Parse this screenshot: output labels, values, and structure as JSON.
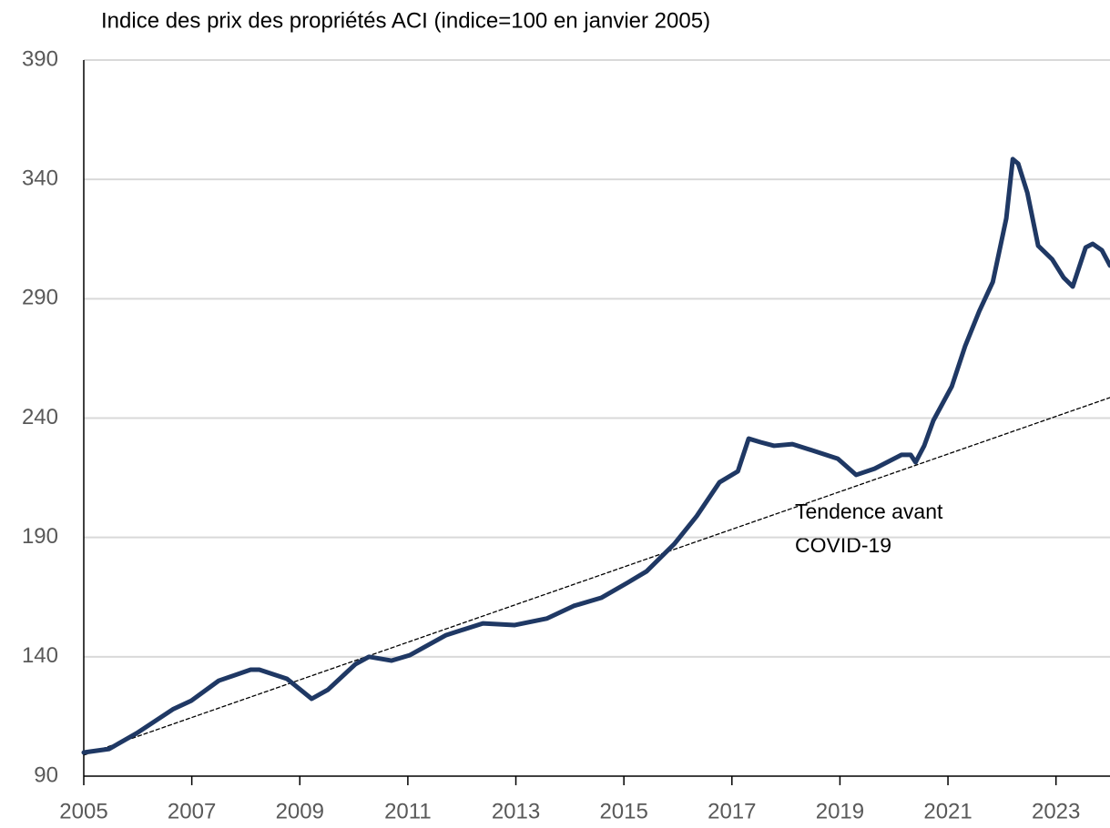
{
  "chart_data": {
    "type": "line",
    "title": "Indice des prix des propriétés ACI (indice=100 en janvier 2005)",
    "annotation": [
      "Tendence avant",
      "COVID-19"
    ],
    "xlim": [
      2005,
      2024
    ],
    "xticks": [
      2005,
      2007,
      2009,
      2011,
      2013,
      2015,
      2017,
      2019,
      2021,
      2023
    ],
    "ylim": [
      90,
      390
    ],
    "yticks": [
      90,
      140,
      190,
      240,
      290,
      340,
      390
    ],
    "grid": true,
    "series": [
      {
        "color": "#1f3864",
        "dash": false,
        "x": [
          2005,
          2005.47,
          2005.98,
          2006.65,
          2006.99,
          2007.5,
          2008.09,
          2008.25,
          2008.76,
          2009.22,
          2009.52,
          2010.03,
          2010.28,
          2010.7,
          2011.04,
          2011.71,
          2012.39,
          2012.98,
          2013.57,
          2014.07,
          2014.58,
          2015.08,
          2015.42,
          2015.93,
          2016.35,
          2016.77,
          2017.11,
          2017.31,
          2017.53,
          2017.78,
          2018.12,
          2018.54,
          2018.96,
          2019.3,
          2019.64,
          2020.14,
          2020.31,
          2020.4,
          2020.56,
          2020.73,
          2021.07,
          2021.32,
          2021.58,
          2021.83,
          2022.08,
          2022.2,
          2022.3,
          2022.47,
          2022.67,
          2022.93,
          2023.14,
          2023.31,
          2023.55,
          2023.68,
          2023.85,
          2024.0
        ],
        "values": [
          99.9,
          101.4,
          108,
          118,
          121.6,
          130,
          134.6,
          134.6,
          130.8,
          122.4,
          126.2,
          136.9,
          140,
          138.4,
          140.7,
          149.1,
          154,
          153.3,
          156,
          161.3,
          164.7,
          171.2,
          175.8,
          187.2,
          199,
          213.1,
          217.7,
          231.4,
          229.9,
          228.4,
          229.1,
          226.1,
          223,
          216.2,
          218.8,
          224.6,
          224.6,
          221.5,
          228.4,
          239,
          253.2,
          270.3,
          284.8,
          297,
          323.7,
          348.5,
          346.6,
          334.4,
          312.2,
          306.5,
          298.9,
          295.1,
          311.5,
          313,
          310.3,
          303.9
        ]
      },
      {
        "color": "#000000",
        "dash": true,
        "x": [
          2005,
          2024
        ],
        "values": [
          98.8,
          248.6
        ]
      }
    ]
  }
}
